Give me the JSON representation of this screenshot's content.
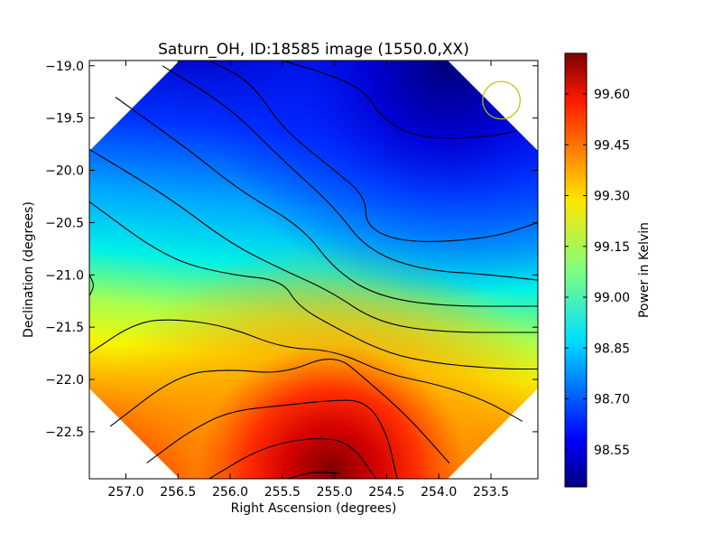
{
  "chart_data": {
    "type": "heatmap",
    "title": "Saturn_OH, ID:18585 image (1550.0,XX)",
    "xlabel": "Right Ascension (degrees)",
    "ylabel": "Declination (degrees)",
    "colorbar_label": "Power in Kelvin",
    "colormap": "jet",
    "xlim": [
      257.35,
      253.05
    ],
    "ylim": [
      -22.95,
      -18.95
    ],
    "x_ticks": [
      257.0,
      256.5,
      256.0,
      255.5,
      255.0,
      254.5,
      254.0,
      253.5
    ],
    "x_tick_labels": [
      "257.0",
      "256.5",
      "256.0",
      "255.5",
      "255.0",
      "254.5",
      "254.0",
      "253.5"
    ],
    "y_ticks": [
      -19.0,
      -19.5,
      -20.0,
      -20.5,
      -21.0,
      -21.5,
      -22.0,
      -22.5
    ],
    "y_tick_labels": [
      "−19.0",
      "−19.5",
      "−20.0",
      "−20.5",
      "−21.0",
      "−21.5",
      "−22.0",
      "−22.5"
    ],
    "colorbar_range": [
      98.44,
      99.72
    ],
    "colorbar_ticks": [
      98.55,
      98.7,
      98.85,
      99.0,
      99.15,
      99.3,
      99.45,
      99.6
    ],
    "colorbar_tick_labels": [
      "98.55",
      "98.70",
      "98.85",
      "99.00",
      "99.15",
      "99.30",
      "99.45",
      "99.60"
    ],
    "beam_circle": {
      "ra": 253.4,
      "dec": -19.33,
      "radius_deg": 0.3,
      "color": "#bfbf00"
    },
    "field_shape": "octagon",
    "contours": [
      [
        [
          256.2,
          -18.95
        ],
        [
          255.8,
          -19.15
        ],
        [
          255.5,
          -19.6
        ],
        [
          255.0,
          -20.0
        ],
        [
          254.7,
          -20.25
        ],
        [
          254.7,
          -20.55
        ],
        [
          254.3,
          -20.7
        ],
        [
          253.5,
          -20.65
        ],
        [
          253.05,
          -20.5
        ]
      ],
      [
        [
          255.5,
          -18.95
        ],
        [
          255.0,
          -19.1
        ],
        [
          254.7,
          -19.25
        ],
        [
          254.55,
          -19.5
        ],
        [
          254.2,
          -19.7
        ],
        [
          253.5,
          -19.68
        ],
        [
          253.25,
          -19.62
        ]
      ],
      [
        [
          256.65,
          -19.0
        ],
        [
          256.0,
          -19.4
        ],
        [
          255.5,
          -19.9
        ],
        [
          255.0,
          -20.35
        ],
        [
          254.7,
          -20.75
        ],
        [
          254.2,
          -20.95
        ],
        [
          253.5,
          -21.0
        ],
        [
          253.05,
          -21.05
        ]
      ],
      [
        [
          257.1,
          -19.3
        ],
        [
          256.4,
          -19.8
        ],
        [
          255.9,
          -20.2
        ],
        [
          255.3,
          -20.55
        ],
        [
          255.0,
          -20.95
        ],
        [
          254.6,
          -21.2
        ],
        [
          254.0,
          -21.3
        ],
        [
          253.05,
          -21.3
        ]
      ],
      [
        [
          257.35,
          -19.8
        ],
        [
          256.6,
          -20.25
        ],
        [
          256.0,
          -20.7
        ],
        [
          255.5,
          -20.95
        ],
        [
          255.05,
          -21.15
        ],
        [
          254.6,
          -21.45
        ],
        [
          254.0,
          -21.55
        ],
        [
          253.05,
          -21.55
        ]
      ],
      [
        [
          257.35,
          -20.3
        ],
        [
          256.6,
          -20.85
        ],
        [
          256.0,
          -21.0
        ],
        [
          255.5,
          -21.05
        ],
        [
          255.35,
          -21.3
        ],
        [
          255.0,
          -21.5
        ],
        [
          254.5,
          -21.75
        ],
        [
          254.0,
          -21.85
        ],
        [
          253.4,
          -21.9
        ],
        [
          253.05,
          -21.9
        ]
      ],
      [
        [
          257.35,
          -21.0
        ],
        [
          257.3,
          -21.1
        ],
        [
          257.35,
          -21.2
        ]
      ],
      [
        [
          257.35,
          -21.75
        ],
        [
          256.9,
          -21.45
        ],
        [
          256.5,
          -21.42
        ],
        [
          256.0,
          -21.5
        ],
        [
          255.5,
          -21.7
        ],
        [
          255.0,
          -21.72
        ],
        [
          254.5,
          -21.95
        ],
        [
          254.0,
          -22.05
        ],
        [
          253.55,
          -22.2
        ],
        [
          253.2,
          -22.4
        ]
      ],
      [
        [
          257.15,
          -22.45
        ],
        [
          256.5,
          -21.95
        ],
        [
          256.0,
          -21.9
        ],
        [
          255.5,
          -21.95
        ],
        [
          255.0,
          -21.75
        ],
        [
          254.7,
          -22.0
        ],
        [
          254.3,
          -22.35
        ],
        [
          253.9,
          -22.8
        ]
      ],
      [
        [
          256.8,
          -22.8
        ],
        [
          256.4,
          -22.5
        ],
        [
          256.0,
          -22.3
        ],
        [
          255.5,
          -22.25
        ],
        [
          255.05,
          -22.2
        ],
        [
          254.7,
          -22.2
        ],
        [
          254.5,
          -22.5
        ],
        [
          254.4,
          -22.95
        ]
      ],
      [
        [
          256.2,
          -22.95
        ],
        [
          255.7,
          -22.65
        ],
        [
          255.2,
          -22.55
        ],
        [
          254.85,
          -22.6
        ],
        [
          254.6,
          -22.95
        ]
      ],
      [
        [
          255.45,
          -22.95
        ],
        [
          255.2,
          -22.88
        ],
        [
          254.95,
          -22.9
        ]
      ]
    ]
  }
}
